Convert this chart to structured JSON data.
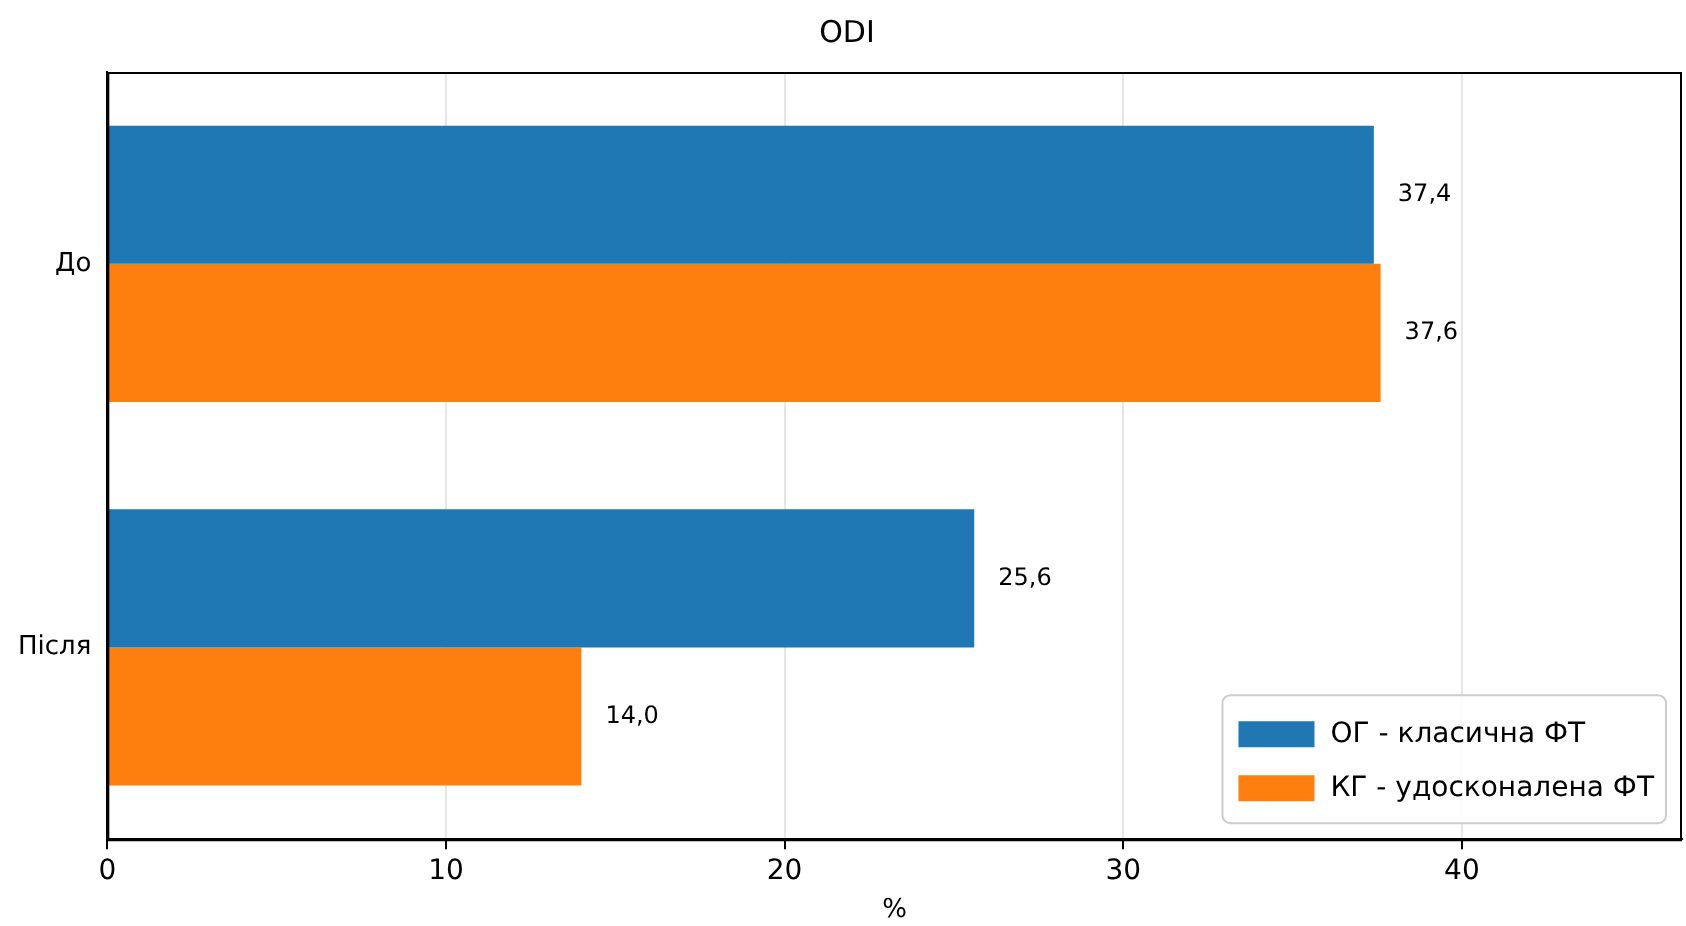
{
  "chart_data": {
    "type": "bar",
    "orientation": "horizontal",
    "title": "ODI",
    "xlabel": "%",
    "categories": [
      "До",
      "Після"
    ],
    "series": [
      {
        "name": "ОГ - класична ФТ",
        "color": "#1f77b4",
        "values": [
          37.4,
          25.6
        ],
        "value_labels": [
          "37,4",
          "25,6"
        ]
      },
      {
        "name": "КГ - удосконалена ФТ",
        "color": "#ff7f0e",
        "values": [
          37.6,
          14.0
        ],
        "value_labels": [
          "37,6",
          "14,0"
        ]
      }
    ],
    "xlim": [
      0,
      46.5
    ],
    "xticks": [
      0,
      10,
      20,
      30,
      40
    ],
    "grid": "x",
    "legend": "bottom right"
  }
}
